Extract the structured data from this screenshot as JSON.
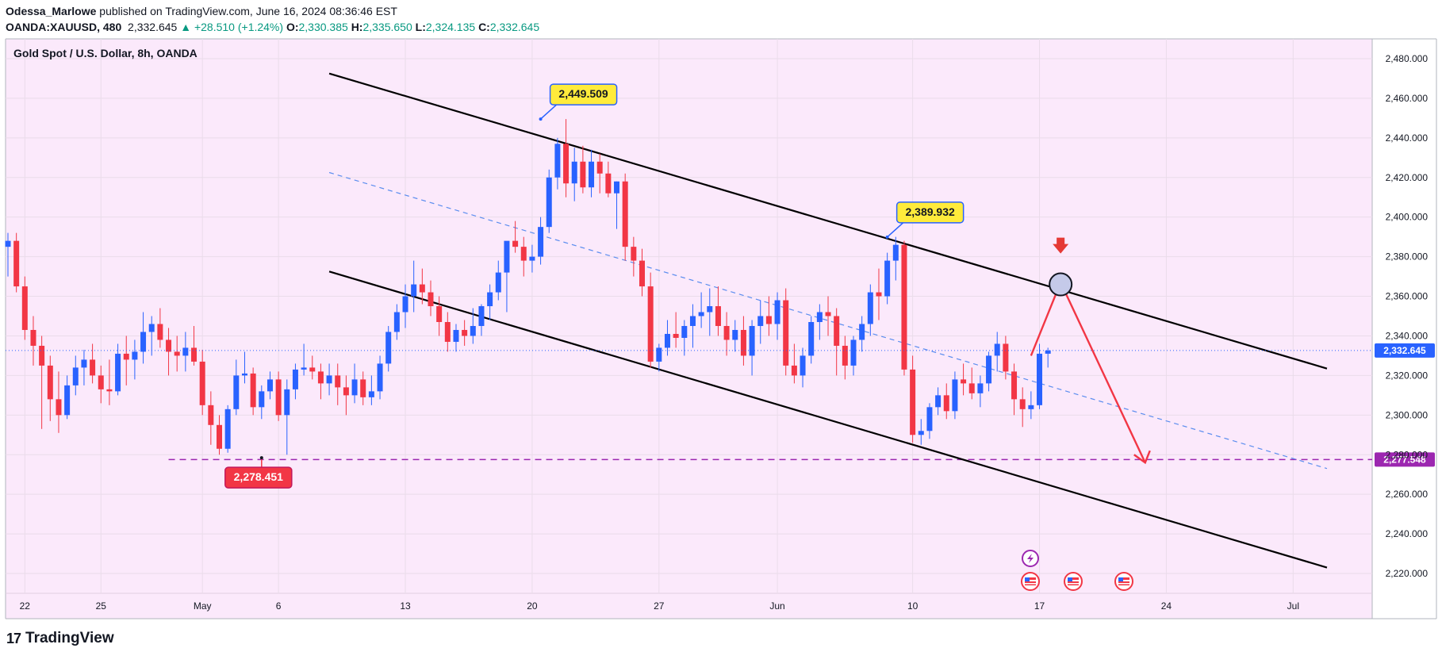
{
  "header": {
    "author": "Odessa_Marlowe",
    "published": " published on TradingView.com, June 16, 2024 08:36:46 EST",
    "symbol": "OANDA:XAUUSD, 480",
    "last": "2,332.645",
    "change": "▲ +28.510 (+1.24%)",
    "o_label": "O:",
    "o_value": "2,330.385",
    "h_label": "H:",
    "h_value": "2,335.650",
    "l_label": "L:",
    "l_value": "2,324.135",
    "c_label": "C:",
    "c_value": "2,332.645"
  },
  "footer": {
    "brand": "TradingView",
    "logo": "17"
  },
  "colors": {
    "up": "#2962ff",
    "down": "#f23645",
    "bg": "#fbe9fb",
    "support": "#9c27b0",
    "channel": "#000000",
    "midline": "#5b8def",
    "arrow": "#f23645"
  },
  "chart_data": {
    "type": "candlestick",
    "title": "Gold Spot / U.S. Dollar, 8h, OANDA",
    "ylim": [
      2210,
      2490
    ],
    "y_ticks": [
      "2,480.000",
      "2,460.000",
      "2,440.000",
      "2,420.000",
      "2,400.000",
      "2,380.000",
      "2,360.000",
      "2,340.000",
      "2,320.000",
      "2,300.000",
      "2,280.000",
      "2,260.000",
      "2,240.000",
      "2,220.000"
    ],
    "y_tick_values": [
      2480,
      2460,
      2440,
      2420,
      2400,
      2380,
      2360,
      2340,
      2320,
      2300,
      2280,
      2260,
      2240,
      2220
    ],
    "x_ticks": [
      "22",
      "25",
      "May",
      "6",
      "13",
      "20",
      "27",
      "Jun",
      "10",
      "17",
      "24",
      "Jul"
    ],
    "x_tick_index": [
      2,
      11,
      23,
      32,
      47,
      62,
      77,
      91,
      107,
      122,
      137,
      152
    ],
    "candles": [
      [
        2385,
        2392,
        2370,
        2388
      ],
      [
        2388,
        2392,
        2362,
        2365
      ],
      [
        2365,
        2370,
        2338,
        2343
      ],
      [
        2343,
        2350,
        2325,
        2335
      ],
      [
        2335,
        2340,
        2293,
        2325
      ],
      [
        2325,
        2330,
        2297,
        2308
      ],
      [
        2308,
        2322,
        2291,
        2300
      ],
      [
        2300,
        2320,
        2298,
        2315
      ],
      [
        2315,
        2330,
        2310,
        2324
      ],
      [
        2324,
        2333,
        2315,
        2328
      ],
      [
        2328,
        2336,
        2316,
        2320
      ],
      [
        2320,
        2325,
        2306,
        2313
      ],
      [
        2313,
        2328,
        2305,
        2312
      ],
      [
        2312,
        2336,
        2310,
        2331
      ],
      [
        2331,
        2340,
        2315,
        2328
      ],
      [
        2328,
        2338,
        2318,
        2332
      ],
      [
        2332,
        2352,
        2326,
        2342
      ],
      [
        2342,
        2350,
        2330,
        2346
      ],
      [
        2346,
        2354,
        2334,
        2338
      ],
      [
        2338,
        2344,
        2320,
        2332
      ],
      [
        2332,
        2340,
        2322,
        2330
      ],
      [
        2330,
        2342,
        2322,
        2334
      ],
      [
        2334,
        2345,
        2325,
        2327
      ],
      [
        2327,
        2333,
        2300,
        2305
      ],
      [
        2305,
        2312,
        2285,
        2295
      ],
      [
        2295,
        2300,
        2280,
        2283
      ],
      [
        2283,
        2305,
        2281,
        2303
      ],
      [
        2303,
        2328,
        2300,
        2320
      ],
      [
        2320,
        2332,
        2316,
        2321
      ],
      [
        2321,
        2324,
        2300,
        2304
      ],
      [
        2304,
        2315,
        2298,
        2312
      ],
      [
        2312,
        2322,
        2308,
        2318
      ],
      [
        2318,
        2322,
        2297,
        2300
      ],
      [
        2300,
        2318,
        2280,
        2313
      ],
      [
        2313,
        2326,
        2308,
        2323
      ],
      [
        2323,
        2336,
        2320,
        2324
      ],
      [
        2324,
        2330,
        2318,
        2322
      ],
      [
        2322,
        2326,
        2308,
        2316
      ],
      [
        2316,
        2326,
        2310,
        2320
      ],
      [
        2320,
        2326,
        2305,
        2314
      ],
      [
        2314,
        2320,
        2300,
        2310
      ],
      [
        2310,
        2326,
        2306,
        2318
      ],
      [
        2318,
        2322,
        2305,
        2309
      ],
      [
        2309,
        2320,
        2305,
        2312
      ],
      [
        2312,
        2330,
        2308,
        2326
      ],
      [
        2326,
        2345,
        2322,
        2342
      ],
      [
        2342,
        2356,
        2338,
        2352
      ],
      [
        2352,
        2366,
        2344,
        2360
      ],
      [
        2360,
        2378,
        2352,
        2366
      ],
      [
        2366,
        2374,
        2356,
        2362
      ],
      [
        2362,
        2368,
        2350,
        2355
      ],
      [
        2355,
        2360,
        2340,
        2347
      ],
      [
        2347,
        2352,
        2332,
        2337
      ],
      [
        2337,
        2346,
        2332,
        2343
      ],
      [
        2343,
        2348,
        2335,
        2340
      ],
      [
        2340,
        2354,
        2336,
        2345
      ],
      [
        2345,
        2356,
        2340,
        2355
      ],
      [
        2355,
        2366,
        2348,
        2362
      ],
      [
        2362,
        2378,
        2358,
        2372
      ],
      [
        2372,
        2386,
        2352,
        2388
      ],
      [
        2388,
        2398,
        2382,
        2385
      ],
      [
        2385,
        2390,
        2370,
        2378
      ],
      [
        2378,
        2386,
        2372,
        2380
      ],
      [
        2380,
        2400,
        2376,
        2395
      ],
      [
        2395,
        2424,
        2392,
        2420
      ],
      [
        2420,
        2440,
        2414,
        2437
      ],
      [
        2437,
        2449.5,
        2410,
        2417
      ],
      [
        2417,
        2435,
        2408,
        2428
      ],
      [
        2428,
        2436,
        2412,
        2415
      ],
      [
        2415,
        2434,
        2410,
        2428
      ],
      [
        2428,
        2432,
        2412,
        2422
      ],
      [
        2422,
        2428,
        2410,
        2412
      ],
      [
        2412,
        2418,
        2394,
        2418
      ],
      [
        2418,
        2422,
        2378,
        2385
      ],
      [
        2385,
        2390,
        2370,
        2378
      ],
      [
        2378,
        2384,
        2360,
        2365
      ],
      [
        2365,
        2372,
        2324,
        2327
      ],
      [
        2327,
        2336,
        2322,
        2334
      ],
      [
        2334,
        2348,
        2330,
        2341
      ],
      [
        2341,
        2352,
        2334,
        2339
      ],
      [
        2339,
        2348,
        2330,
        2345
      ],
      [
        2345,
        2356,
        2334,
        2350
      ],
      [
        2350,
        2362,
        2344,
        2352
      ],
      [
        2352,
        2364,
        2340,
        2355
      ],
      [
        2355,
        2365,
        2340,
        2345
      ],
      [
        2345,
        2352,
        2330,
        2338
      ],
      [
        2338,
        2348,
        2332,
        2343
      ],
      [
        2343,
        2350,
        2325,
        2330
      ],
      [
        2330,
        2348,
        2320,
        2345
      ],
      [
        2345,
        2358,
        2336,
        2350
      ],
      [
        2350,
        2360,
        2340,
        2346
      ],
      [
        2346,
        2362,
        2338,
        2358
      ],
      [
        2358,
        2364,
        2320,
        2325
      ],
      [
        2325,
        2336,
        2316,
        2320
      ],
      [
        2320,
        2334,
        2314,
        2330
      ],
      [
        2330,
        2350,
        2326,
        2347
      ],
      [
        2347,
        2356,
        2338,
        2352
      ],
      [
        2352,
        2360,
        2340,
        2350
      ],
      [
        2350,
        2354,
        2320,
        2335
      ],
      [
        2335,
        2340,
        2318,
        2325
      ],
      [
        2325,
        2340,
        2320,
        2338
      ],
      [
        2338,
        2350,
        2332,
        2346
      ],
      [
        2346,
        2366,
        2340,
        2362
      ],
      [
        2362,
        2374,
        2348,
        2360
      ],
      [
        2360,
        2382,
        2356,
        2378
      ],
      [
        2378,
        2390,
        2368,
        2386
      ],
      [
        2386,
        2388,
        2320,
        2323
      ],
      [
        2323,
        2330,
        2286,
        2290
      ],
      [
        2290,
        2298,
        2285,
        2292
      ],
      [
        2292,
        2306,
        2288,
        2304
      ],
      [
        2304,
        2314,
        2300,
        2310
      ],
      [
        2310,
        2316,
        2298,
        2302
      ],
      [
        2302,
        2322,
        2298,
        2318
      ],
      [
        2318,
        2326,
        2310,
        2316
      ],
      [
        2316,
        2324,
        2308,
        2311
      ],
      [
        2311,
        2320,
        2304,
        2316
      ],
      [
        2316,
        2332,
        2312,
        2330
      ],
      [
        2330,
        2342,
        2322,
        2336
      ],
      [
        2336,
        2340,
        2318,
        2322
      ],
      [
        2322,
        2326,
        2300,
        2308
      ],
      [
        2308,
        2314,
        2294,
        2303
      ],
      [
        2303,
        2312,
        2298,
        2305
      ],
      [
        2305,
        2336,
        2303,
        2331
      ],
      [
        2331,
        2334,
        2324,
        2332.645
      ]
    ],
    "channel_upper": [
      [
        38,
        2472.5
      ],
      [
        156,
        2323.5
      ]
    ],
    "channel_lower": [
      [
        38,
        2372.5
      ],
      [
        156,
        2223
      ]
    ],
    "channel_mid": [
      [
        38,
        2422.5
      ],
      [
        156,
        2273
      ]
    ],
    "support_level": 2277.548,
    "support_label": "2,277.548",
    "support_range": [
      19,
      162
    ],
    "last_price": 2332.645,
    "last_price_label": "2,332.645",
    "callouts": [
      {
        "text": "2,449.509",
        "type": "high",
        "index": 63,
        "price": 2449.509
      },
      {
        "text": "2,389.932",
        "type": "high",
        "index": 104,
        "price": 2389.932
      },
      {
        "text": "2,278.451",
        "type": "low",
        "index": 30,
        "price": 2278.451
      }
    ],
    "projection": [
      [
        121,
        2330
      ],
      [
        124.5,
        2367
      ],
      [
        134.5,
        2276
      ]
    ],
    "projection_circle": [
      124.5,
      2366
    ],
    "projection_down_marker": [
      124.5,
      2384
    ]
  }
}
